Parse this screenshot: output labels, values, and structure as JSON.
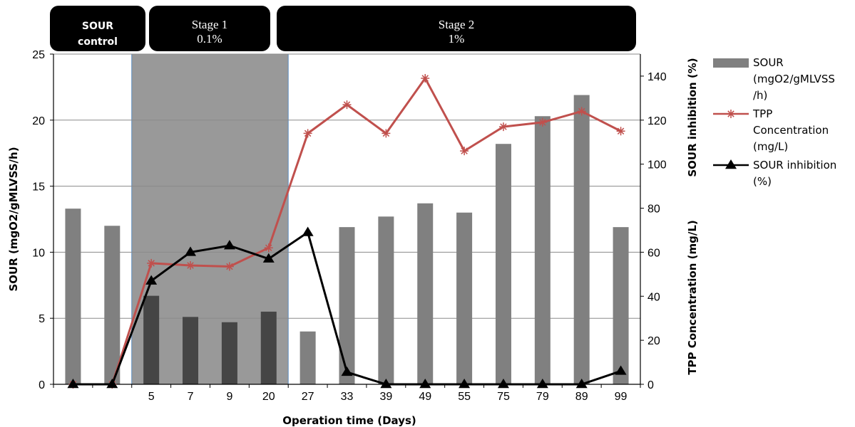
{
  "stages": [
    {
      "lines": [
        "SOUR",
        "control"
      ],
      "bold": true
    },
    {
      "lines": [
        "Stage 1",
        "0.1%"
      ],
      "bold": false
    },
    {
      "lines": [
        "Stage 2",
        "1%"
      ],
      "bold": false
    }
  ],
  "chart_data": {
    "type": "bar",
    "categories": [
      "",
      "",
      "5",
      "7",
      "9",
      "20",
      "27",
      "33",
      "39",
      "49",
      "55",
      "75",
      "79",
      "89",
      "99"
    ],
    "xlabel": "Operation time (Days)",
    "ylabel_left": "SOUR (mgO2/gMLVSS/h)",
    "ylabel_right_top": "SOUR inhibition (%)",
    "ylabel_right_bottom": "TPP Concentration (mg/L)",
    "ylim_left": [
      0,
      25
    ],
    "yticks_left": [
      0,
      5,
      10,
      15,
      20,
      25
    ],
    "ylim_right": [
      0,
      150
    ],
    "yticks_right": [
      0,
      20,
      40,
      60,
      80,
      100,
      120,
      140
    ],
    "grid": true,
    "legend_position": "right",
    "series": [
      {
        "name": "SOUR (mgO2/gMLVSS/h)",
        "legend_lines": [
          "SOUR",
          "(mgO2/gMLVSS",
          "/h)"
        ],
        "kind": "bar",
        "axis": "left",
        "color": "#808080",
        "values": [
          13.3,
          12.0,
          6.7,
          5.1,
          4.7,
          5.5,
          4.0,
          11.9,
          12.7,
          13.7,
          13.0,
          18.2,
          20.3,
          21.9,
          11.9
        ]
      },
      {
        "name": "TPP Concentration (mg/L)",
        "legend_lines": [
          "TPP",
          "Concentration",
          "(mg/L)"
        ],
        "kind": "line",
        "marker": "star",
        "axis": "right",
        "color": "#c0504d",
        "values": [
          0,
          0,
          55,
          54,
          53.5,
          62,
          114,
          127,
          114,
          139,
          106,
          117,
          119,
          124,
          115
        ]
      },
      {
        "name": "SOUR inhibition (%)",
        "legend_lines": [
          "SOUR inhibition",
          "(%)"
        ],
        "kind": "line",
        "marker": "triangle",
        "axis": "right",
        "color": "#000000",
        "values": [
          0,
          0,
          47,
          60,
          63,
          57,
          69,
          5.5,
          0,
          0,
          0,
          0,
          0,
          0,
          6
        ]
      }
    ],
    "shaded_region": {
      "from_index": 2,
      "to_index": 5,
      "color": "#999999"
    }
  }
}
